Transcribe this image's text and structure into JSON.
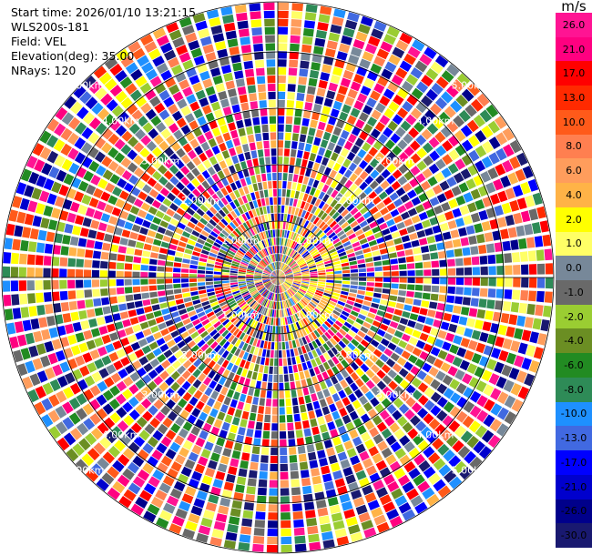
{
  "info": {
    "start_time": "Start time: 2026/01/10 13:21:15",
    "instrument": "WLS200s-181",
    "field": "Field: VEL",
    "elevation": "Elevation(deg): 35.00",
    "nrays": "NRays: 120"
  },
  "range_labels": [
    "1.00km",
    "2.00km",
    "3.00km",
    "4.00km",
    "5.00km"
  ],
  "colorbar": {
    "unit": "m/s",
    "ticks": [
      "26.0",
      "21.0",
      "17.0",
      "13.0",
      "10.0",
      "8.0",
      "6.0",
      "4.0",
      "2.0",
      "1.0",
      "0.0",
      "-1.0",
      "-2.0",
      "-4.0",
      "-6.0",
      "-8.0",
      "-10.0",
      "-13.0",
      "-17.0",
      "-21.0",
      "-26.0",
      "-30.0"
    ],
    "colors": [
      "#ff1493",
      "#ff0080",
      "#ff0000",
      "#ff2a00",
      "#ff5a1a",
      "#ff7f50",
      "#ff9d5c",
      "#ffb347",
      "#ffff00",
      "#ffff66",
      "#778899",
      "#696969",
      "#9acd32",
      "#6b8e23",
      "#228b22",
      "#2e8b57",
      "#1e90ff",
      "#4169e1",
      "#0000ff",
      "#0000cd",
      "#00008b",
      "#191970"
    ]
  }
}
